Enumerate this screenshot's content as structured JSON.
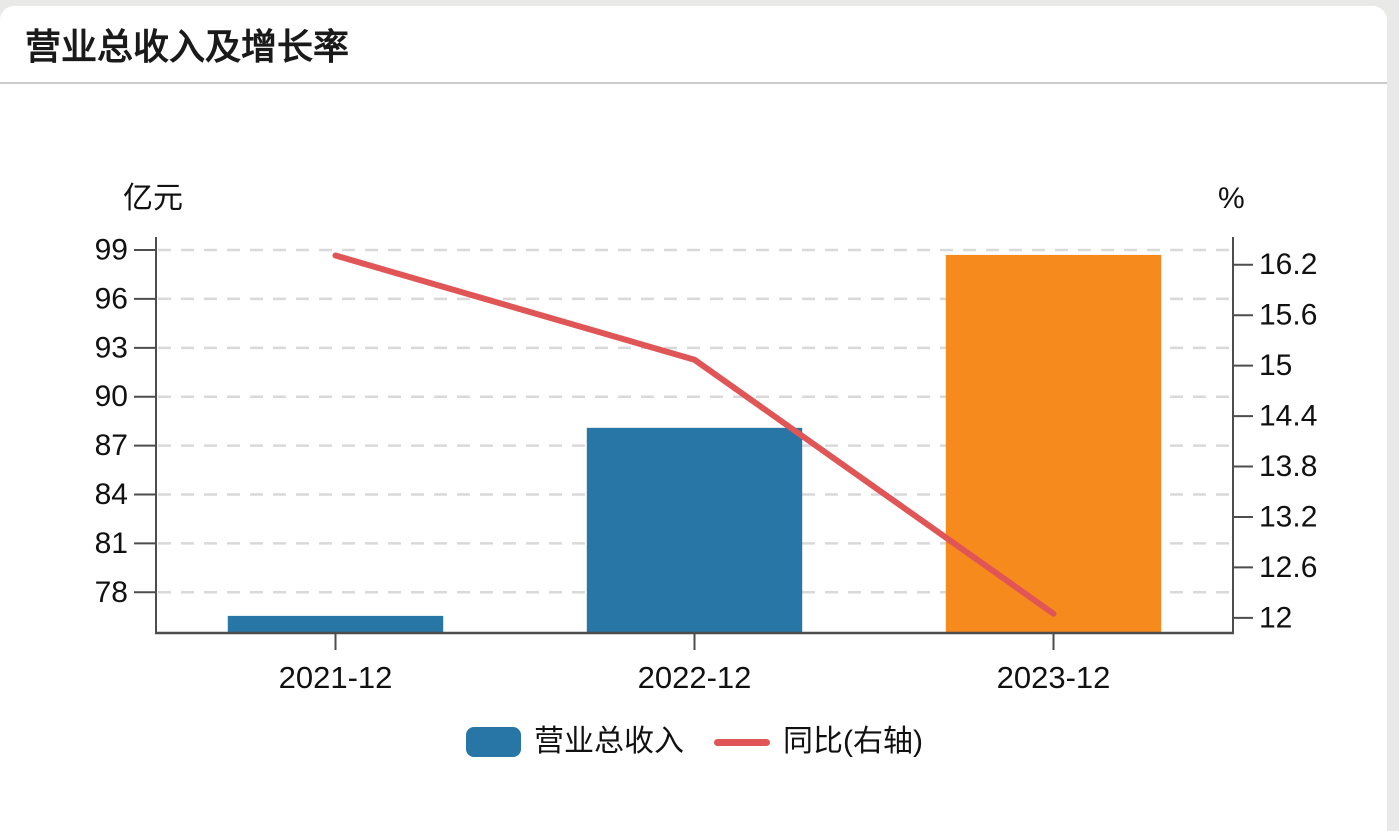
{
  "page": {
    "title": "营业总收入及增长率",
    "background_color": "#e9e9e7",
    "card_color": "#ffffff",
    "divider_color": "#cccccc"
  },
  "chart_data": {
    "type": "bar",
    "title": "营业总收入及增长率",
    "categories": [
      "2021-12",
      "2022-12",
      "2023-12"
    ],
    "series": [
      {
        "name": "营业总收入",
        "type": "bar",
        "axis": "left",
        "unit": "亿元",
        "values": [
          76.55,
          88.09,
          98.7
        ],
        "bar_colors": [
          "#2776A6",
          "#2776A6",
          "#F68A1C"
        ]
      },
      {
        "name": "同比(右轴)",
        "type": "line",
        "axis": "right",
        "unit": "%",
        "values": [
          16.31,
          15.07,
          12.05
        ],
        "color": "#E05555"
      }
    ],
    "left_axis": {
      "unit_label": "亿元",
      "ticks": [
        99,
        96,
        93,
        90,
        87,
        84,
        81,
        78
      ],
      "ylim": [
        75.5,
        99.8
      ]
    },
    "right_axis": {
      "unit_label": "%",
      "ticks": [
        16.2,
        15.6,
        15,
        14.4,
        13.8,
        13.2,
        12.6,
        12
      ],
      "tick_labels": [
        "16.2",
        "15.6",
        "15",
        "14.4",
        "13.8",
        "13.2",
        "12.6",
        "12"
      ],
      "ylim": [
        11.82,
        16.53
      ]
    },
    "grid": {
      "horizontal": true,
      "style": "dashed",
      "color": "#d9d9d9"
    },
    "axis_color": "#4d4d4d",
    "text_color": "#111111",
    "legend": {
      "position": "bottom-center",
      "items": [
        {
          "label": "营业总收入",
          "swatch": "bar",
          "color": "#2776A6"
        },
        {
          "label": "同比(右轴)",
          "swatch": "line",
          "color": "#E05555"
        }
      ]
    }
  }
}
